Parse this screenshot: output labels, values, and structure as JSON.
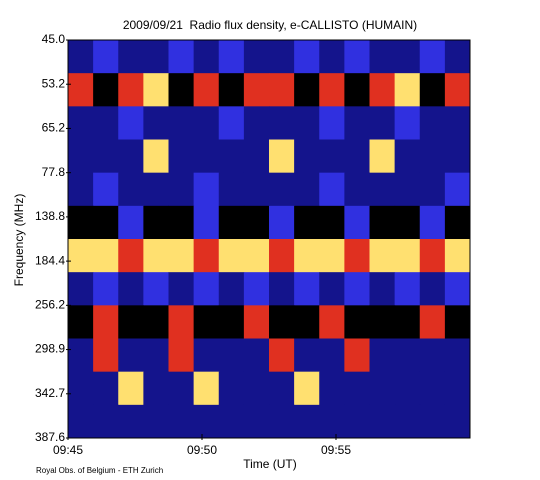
{
  "chart_data": {
    "type": "heatmap",
    "title": "2009/09/21  Radio flux density, e-CALLISTO (HUMAIN)",
    "x_label": "Time (UT)",
    "y_label": "Frequency (MHz)",
    "credit": "Royal Obs. of Belgium - ETH Zurich",
    "xlim": [
      585,
      600
    ],
    "xticks": [
      {
        "value": 585,
        "label": "09:45"
      },
      {
        "value": 590,
        "label": "09:50"
      },
      {
        "value": 595,
        "label": "09:55"
      }
    ],
    "ylim": [
      45,
      387.6
    ],
    "y_inverted": true,
    "yticks": [
      {
        "value": 45,
        "label": "45.0"
      },
      53.2,
      65.2,
      77.8,
      138.8,
      184.4,
      256.2,
      298.9,
      342.7,
      387.6
    ],
    "colors": [
      "#000000",
      "#14148c",
      "#3030e0",
      "#e03020",
      "#ffe070"
    ],
    "z": [
      [
        1,
        2,
        1,
        1,
        2,
        1,
        2,
        1,
        1,
        2,
        1,
        2,
        1,
        1,
        2,
        1
      ],
      [
        3,
        0,
        3,
        4,
        0,
        3,
        0,
        3,
        3,
        0,
        3,
        0,
        3,
        4,
        0,
        3
      ],
      [
        1,
        1,
        2,
        1,
        1,
        1,
        2,
        1,
        1,
        1,
        2,
        1,
        1,
        2,
        1,
        1
      ],
      [
        1,
        1,
        1,
        4,
        1,
        1,
        1,
        1,
        4,
        1,
        1,
        1,
        4,
        1,
        1,
        1
      ],
      [
        1,
        2,
        1,
        1,
        1,
        2,
        1,
        1,
        1,
        1,
        2,
        1,
        1,
        1,
        1,
        2
      ],
      [
        0,
        0,
        2,
        0,
        0,
        2,
        0,
        0,
        2,
        0,
        0,
        2,
        0,
        0,
        2,
        0
      ],
      [
        4,
        4,
        3,
        4,
        4,
        3,
        4,
        4,
        3,
        4,
        4,
        3,
        4,
        4,
        3,
        4
      ],
      [
        1,
        2,
        1,
        2,
        1,
        2,
        1,
        2,
        1,
        2,
        1,
        2,
        1,
        2,
        1,
        2
      ],
      [
        0,
        3,
        0,
        0,
        3,
        0,
        0,
        3,
        0,
        0,
        3,
        0,
        0,
        0,
        3,
        0
      ],
      [
        1,
        3,
        1,
        1,
        3,
        1,
        1,
        1,
        3,
        1,
        1,
        3,
        1,
        1,
        1,
        1
      ],
      [
        1,
        1,
        4,
        1,
        1,
        4,
        1,
        1,
        1,
        4,
        1,
        1,
        1,
        1,
        1,
        1
      ],
      [
        1,
        1,
        1,
        1,
        1,
        1,
        1,
        1,
        1,
        1,
        1,
        1,
        1,
        1,
        1,
        1
      ]
    ]
  }
}
